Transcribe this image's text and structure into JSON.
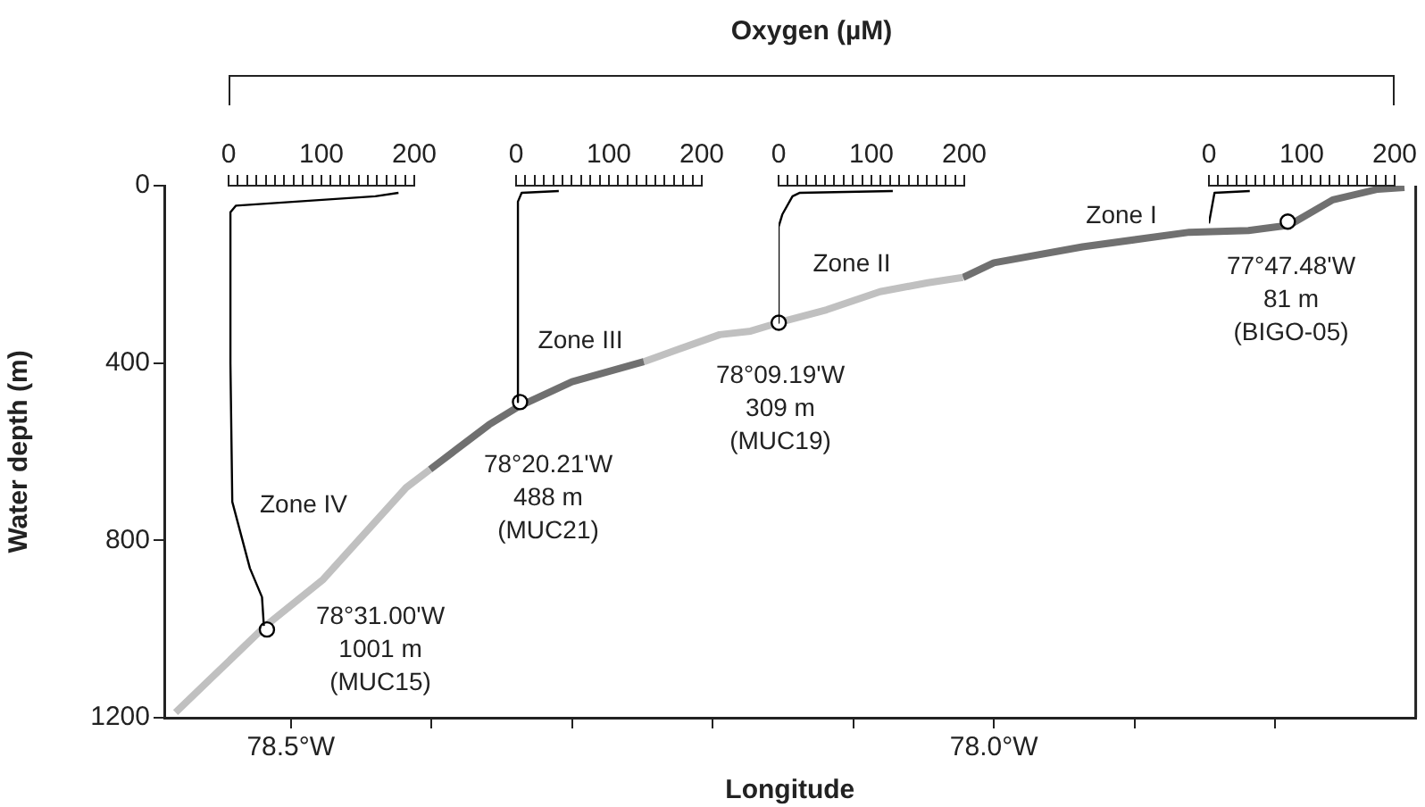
{
  "chart_data": [
    {
      "type": "line",
      "title": "Oxygen (µM)",
      "xlabel": "Longitude",
      "ylabel": "Water depth (m)",
      "xlim": [
        -78.59,
        -77.7
      ],
      "xticks": [
        {
          "value": -78.5,
          "label": "78.5°W"
        },
        {
          "value": -78.4,
          "label": null
        },
        {
          "value": -78.3,
          "label": null
        },
        {
          "value": -78.2,
          "label": null
        },
        {
          "value": -78.1,
          "label": null
        },
        {
          "value": -78,
          "label": "78.0°W"
        },
        {
          "value": -77.9,
          "label": null
        },
        {
          "value": -77.8,
          "label": null
        }
      ],
      "ylim": [
        1200,
        0
      ],
      "yticks": [
        0,
        400,
        800,
        1200
      ],
      "legend": false,
      "grid": false,
      "series": [
        {
          "type": "scatter",
          "color": "#000000",
          "marker": "circle",
          "x": [
            -78.517,
            -78.337,
            -78.153,
            -77.791
          ],
          "values": [
            1001,
            488,
            309,
            81
          ]
        },
        {
          "type": "line",
          "color": "#c0c0c0",
          "marker": "none",
          "x": [
            -78.582,
            -78.518,
            -78.477,
            -78.418,
            -78.401
          ],
          "values": [
            1188,
            993,
            888,
            681,
            640
          ]
        },
        {
          "type": "line",
          "color": "#707070",
          "marker": "none",
          "x": [
            -78.401,
            -78.359,
            -78.338,
            -78.3,
            -78.249
          ],
          "values": [
            640,
            539,
            498,
            442,
            397
          ]
        },
        {
          "type": "line",
          "color": "#c0c0c0",
          "marker": "none",
          "x": [
            -78.249,
            -78.195,
            -78.173,
            -78.152,
            -78.119,
            -78.081,
            -78.047,
            -78.022
          ],
          "values": [
            397,
            336,
            328,
            308,
            280,
            239,
            219,
            207
          ]
        },
        {
          "type": "line",
          "color": "#707070",
          "marker": "none",
          "x": [
            -78.022,
            -78.0,
            -77.937,
            -77.861,
            -77.819,
            -77.79,
            -77.759,
            -77.727,
            -77.708
          ],
          "values": [
            207,
            174,
            138,
            105,
            101,
            89,
            32,
            8,
            4
          ]
        }
      ],
      "annotations": [
        "Zone IV",
        "Zone III",
        "Zone II",
        "Zone I",
        "78°31.00'W\n1001 m\n(MUC15)",
        "78°20.21'W\n488 m\n(MUC21)",
        "78°09.19'W\n309 m\n(MUC19)",
        "77°47.48'W\n81 m\n(BIGO-05)"
      ]
    },
    {
      "type": "line",
      "xlim": [
        0,
        200
      ],
      "xticks": [
        0,
        {
          "value": 10,
          "label": null
        },
        {
          "value": 20,
          "label": null
        },
        {
          "value": 30,
          "label": null
        },
        {
          "value": 40,
          "label": null
        },
        {
          "value": 50,
          "label": null
        },
        {
          "value": 60,
          "label": null
        },
        {
          "value": 70,
          "label": null
        },
        {
          "value": 80,
          "label": null
        },
        {
          "value": 90,
          "label": null
        },
        100,
        {
          "value": 110,
          "label": null
        },
        {
          "value": 120,
          "label": null
        },
        {
          "value": 130,
          "label": null
        },
        {
          "value": 140,
          "label": null
        },
        {
          "value": 150,
          "label": null
        },
        {
          "value": 160,
          "label": null
        },
        {
          "value": 170,
          "label": null
        },
        {
          "value": 180,
          "label": null
        },
        {
          "value": 190,
          "label": null
        },
        200
      ],
      "ylim": [
        1200,
        0
      ],
      "tick_labels": "x",
      "legend": false,
      "grid": false,
      "series": [
        {
          "type": "line",
          "color": "#000000",
          "marker": "none",
          "x": [
            183,
            158,
            8,
            2,
            2,
            4,
            23,
            36,
            38
          ],
          "values": [
            16,
            24,
            45,
            60,
            400,
            713,
            863,
            928,
            993
          ]
        }
      ]
    },
    {
      "type": "line",
      "xlim": [
        0,
        200
      ],
      "xticks": [
        0,
        {
          "value": 10,
          "label": null
        },
        {
          "value": 20,
          "label": null
        },
        {
          "value": 30,
          "label": null
        },
        {
          "value": 40,
          "label": null
        },
        {
          "value": 50,
          "label": null
        },
        {
          "value": 60,
          "label": null
        },
        {
          "value": 70,
          "label": null
        },
        {
          "value": 80,
          "label": null
        },
        {
          "value": 90,
          "label": null
        },
        100,
        {
          "value": 110,
          "label": null
        },
        {
          "value": 120,
          "label": null
        },
        {
          "value": 130,
          "label": null
        },
        {
          "value": 140,
          "label": null
        },
        {
          "value": 150,
          "label": null
        },
        {
          "value": 160,
          "label": null
        },
        {
          "value": 170,
          "label": null
        },
        {
          "value": 180,
          "label": null
        },
        {
          "value": 190,
          "label": null
        },
        200
      ],
      "ylim": [
        1200,
        0
      ],
      "tick_labels": "x",
      "legend": false,
      "grid": false,
      "series": [
        {
          "type": "line",
          "color": "#000000",
          "marker": "none",
          "x": [
            46,
            6,
            2,
            2
          ],
          "values": [
            12,
            16,
            36,
            488
          ]
        }
      ]
    },
    {
      "type": "line",
      "xlim": [
        0,
        200
      ],
      "xticks": [
        0,
        {
          "value": 10,
          "label": null
        },
        {
          "value": 20,
          "label": null
        },
        {
          "value": 30,
          "label": null
        },
        {
          "value": 40,
          "label": null
        },
        {
          "value": 50,
          "label": null
        },
        {
          "value": 60,
          "label": null
        },
        {
          "value": 70,
          "label": null
        },
        {
          "value": 80,
          "label": null
        },
        {
          "value": 90,
          "label": null
        },
        100,
        {
          "value": 110,
          "label": null
        },
        {
          "value": 120,
          "label": null
        },
        {
          "value": 130,
          "label": null
        },
        {
          "value": 140,
          "label": null
        },
        {
          "value": 150,
          "label": null
        },
        {
          "value": 160,
          "label": null
        },
        {
          "value": 170,
          "label": null
        },
        {
          "value": 180,
          "label": null
        },
        {
          "value": 190,
          "label": null
        },
        200
      ],
      "ylim": [
        1200,
        0
      ],
      "tick_labels": "x",
      "legend": false,
      "grid": false,
      "series": [
        {
          "type": "line",
          "color": "#000000",
          "marker": "none",
          "x": [
            123,
            23,
            15,
            4,
            0,
            0
          ],
          "values": [
            12,
            16,
            24,
            65,
            93,
            309
          ]
        }
      ]
    },
    {
      "type": "line",
      "xlim": [
        0,
        200
      ],
      "xticks": [
        0,
        {
          "value": 10,
          "label": null
        },
        {
          "value": 20,
          "label": null
        },
        {
          "value": 30,
          "label": null
        },
        {
          "value": 40,
          "label": null
        },
        {
          "value": 50,
          "label": null
        },
        {
          "value": 60,
          "label": null
        },
        {
          "value": 70,
          "label": null
        },
        {
          "value": 80,
          "label": null
        },
        {
          "value": 90,
          "label": null
        },
        100,
        {
          "value": 110,
          "label": null
        },
        {
          "value": 120,
          "label": null
        },
        {
          "value": 130,
          "label": null
        },
        {
          "value": 140,
          "label": null
        },
        {
          "value": 150,
          "label": null
        },
        {
          "value": 160,
          "label": null
        },
        {
          "value": 170,
          "label": null
        },
        {
          "value": 180,
          "label": null
        },
        {
          "value": 190,
          "label": null
        },
        200
      ],
      "ylim": [
        1200,
        0
      ],
      "tick_labels": "x",
      "legend": false,
      "grid": false,
      "series": [
        {
          "type": "line",
          "color": "#000000",
          "marker": "none",
          "x": [
            44,
            6,
            0
          ],
          "values": [
            12,
            16,
            85
          ]
        }
      ]
    }
  ]
}
